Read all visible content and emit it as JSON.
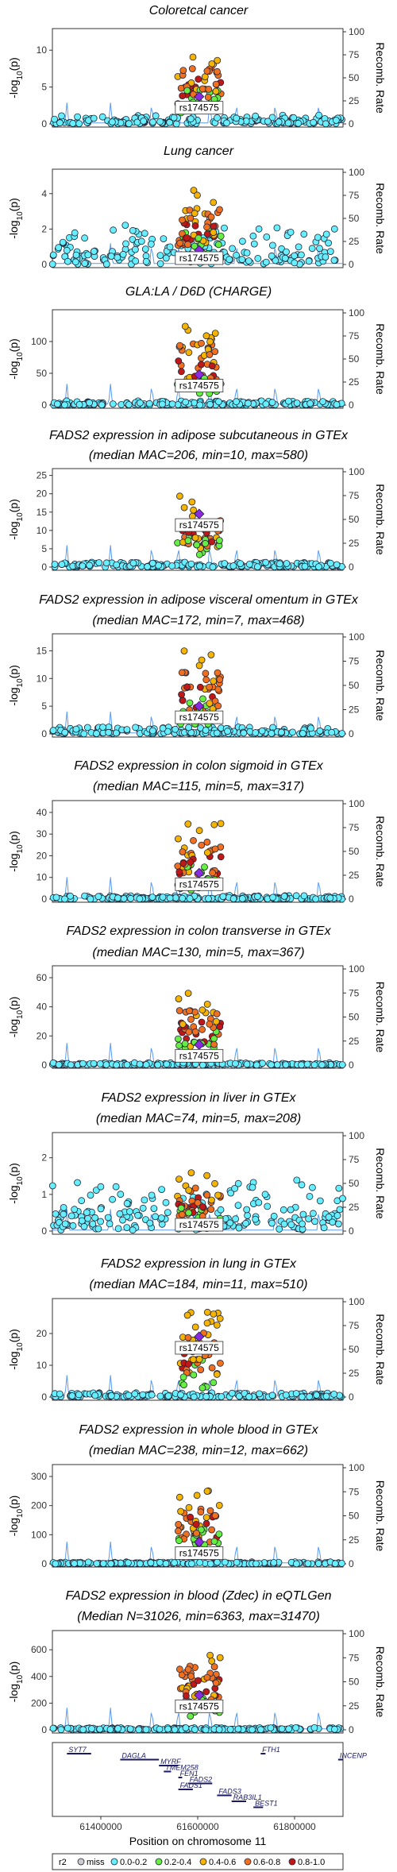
{
  "chart_data": {
    "type": "scatter",
    "lead_snp": "rs174575",
    "x_range": [
      61300000,
      61900000
    ],
    "x_ticks": [
      61400000,
      61600000,
      61800000
    ],
    "x_tick_labels": [
      "61400000",
      "61600000",
      "61800000"
    ],
    "xlabel": "Position on chromosome 11",
    "recomb_axis": {
      "label": "Recomb. Rate",
      "ticks": [
        0,
        25,
        50,
        75,
        100
      ],
      "range": [
        0,
        100
      ]
    },
    "y_label_html": {
      "prefix": "-log",
      "sub": "10",
      "suffix": "(p)"
    },
    "legend": {
      "title": "r2",
      "items": [
        {
          "label": "miss",
          "color": "#cccccc"
        },
        {
          "label": "0.0-0.2",
          "color": "#66f0ff"
        },
        {
          "label": "0.2-0.4",
          "color": "#66ee44"
        },
        {
          "label": "0.4-0.6",
          "color": "#f5b400"
        },
        {
          "label": "0.6-0.8",
          "color": "#f07020"
        },
        {
          "label": "0.8-1.0",
          "color": "#c01818"
        }
      ],
      "lead_color": "#8a2be2"
    },
    "panels": [
      {
        "title": [
          "Coloretcal cancer"
        ],
        "ylim": [
          0,
          12.5
        ],
        "yticks": [
          0,
          5,
          10
        ],
        "lead_y": 3.7,
        "peak": 10.3,
        "bg": 1.1
      },
      {
        "title": [
          "Lung cancer"
        ],
        "ylim": [
          0,
          5.2
        ],
        "yticks": [
          0,
          2,
          4
        ],
        "lead_y": 0.8,
        "peak": 4.2,
        "bg": 2.0
      },
      {
        "title": [
          "GLA:LA / D6D (CHARGE)"
        ],
        "ylim": [
          0,
          145
        ],
        "yticks": [
          0,
          50,
          100
        ],
        "lead_y": 48,
        "peak": 130,
        "bg": 6
      },
      {
        "title": [
          "FADS2 expression in adipose subcutaneous in GTEx",
          "(median MAC=206, min=10, max=580)"
        ],
        "ylim": [
          0,
          26
        ],
        "yticks": [
          0,
          5,
          10,
          15,
          20,
          25
        ],
        "lead_y": 14.5,
        "peak": 20,
        "bg": 1.2
      },
      {
        "title": [
          "FADS2 expression in adipose visceral omentum in GTEx",
          "(median MAC=172, min=7, max=468)"
        ],
        "ylim": [
          0,
          17.5
        ],
        "yticks": [
          0,
          5,
          10,
          15
        ],
        "lead_y": 5,
        "peak": 15,
        "bg": 1.2
      },
      {
        "title": [
          "FADS2 expression in colon sigmoid in GTEx",
          "(median MAC=115, min=5, max=317)"
        ],
        "ylim": [
          0,
          44
        ],
        "yticks": [
          0,
          10,
          20,
          30,
          40
        ],
        "lead_y": 12,
        "peak": 36,
        "bg": 1.5
      },
      {
        "title": [
          "FADS2 expression in colon transverse in GTEx",
          "(median MAC=130, min=5, max=367)"
        ],
        "ylim": [
          0,
          66
        ],
        "yticks": [
          0,
          20,
          40,
          60
        ],
        "lead_y": 14,
        "peak": 51,
        "bg": 1.5
      },
      {
        "title": [
          "FADS2 expression in liver in GTEx",
          "(median MAC=74, min=5, max=208)"
        ],
        "ylim": [
          0,
          2.6
        ],
        "yticks": [
          0,
          1,
          2
        ],
        "lead_y": 0.1,
        "peak": 1.6,
        "bg": 1.3
      },
      {
        "title": [
          "FADS2 expression in lung in GTEx",
          "(median MAC=184, min=11, max=510)"
        ],
        "ylim": [
          0,
          30
        ],
        "yticks": [
          0,
          10,
          20
        ],
        "lead_y": 19,
        "peak": 27,
        "bg": 1.2
      },
      {
        "title": [
          "FADS2 expression in whole blood in GTEx",
          "(median MAC=238, min=12, max=662)"
        ],
        "ylim": [
          0,
          330
        ],
        "yticks": [
          0,
          100,
          200,
          300
        ],
        "lead_y": 75,
        "peak": 270,
        "bg": 6
      },
      {
        "title": [
          "FADS2 expression in blood (Zdec) in eQTLGen",
          "(Median N=31026, min=6363, max=31470)"
        ],
        "ylim": [
          0,
          720
        ],
        "yticks": [
          0,
          200,
          400,
          600
        ],
        "lead_y": 260,
        "peak": 640,
        "bg": 15
      }
    ],
    "genes": [
      {
        "name": "SYT7",
        "start": 61330000,
        "end": 61380000,
        "row": 0
      },
      {
        "name": "DAGLA",
        "start": 61440000,
        "end": 61520000,
        "row": 1
      },
      {
        "name": "MYRF",
        "start": 61520000,
        "end": 61560000,
        "row": 2
      },
      {
        "name": "TMEM258",
        "start": 61530000,
        "end": 61545000,
        "row": 3
      },
      {
        "name": "FEN1",
        "start": 61560000,
        "end": 61568000,
        "row": 4
      },
      {
        "name": "FADS2",
        "start": 61580000,
        "end": 61630000,
        "row": 5
      },
      {
        "name": "FADS1",
        "start": 61560000,
        "end": 61590000,
        "row": 6
      },
      {
        "name": "FADS3",
        "start": 61640000,
        "end": 61670000,
        "row": 7
      },
      {
        "name": "RAB3IL1",
        "start": 61670000,
        "end": 61700000,
        "row": 8
      },
      {
        "name": "BEST1",
        "start": 61715000,
        "end": 61735000,
        "row": 9
      },
      {
        "name": "FTH1",
        "start": 61730000,
        "end": 61740000,
        "row": 0
      },
      {
        "name": "INCENP",
        "start": 61890000,
        "end": 61920000,
        "row": 1
      }
    ]
  }
}
